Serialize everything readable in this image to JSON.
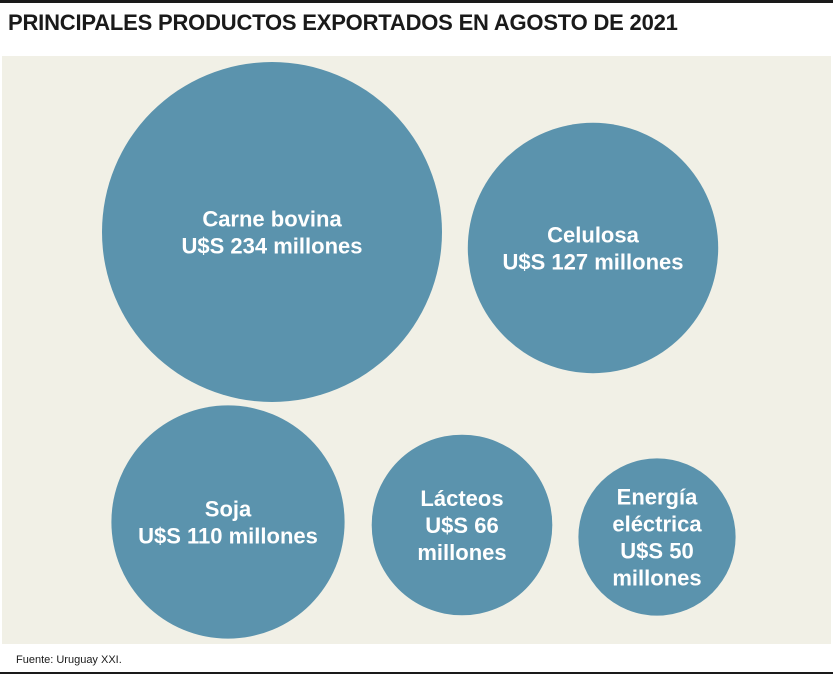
{
  "title": "PRINCIPALES PRODUCTOS EXPORTADOS EN AGOSTO DE 2021",
  "source": "Fuente: Uruguay XXI.",
  "colors": {
    "bubble": "#5b93ad",
    "panel": "#f1f0e6",
    "text": "#1a1a1a"
  },
  "chart_data": {
    "type": "bubble",
    "title": "PRINCIPALES PRODUCTOS EXPORTADOS EN AGOSTO DE 2021",
    "unit": "millones U$S",
    "categories": [
      "Carne bovina",
      "Celulosa",
      "Soja",
      "Lácteos",
      "Energía eléctrica"
    ],
    "values": [
      234,
      127,
      110,
      66,
      50
    ],
    "labels": [
      [
        "Carne bovina",
        "U$S 234 millones"
      ],
      [
        "Celulosa",
        "U$S 127  millones"
      ],
      [
        "Soja",
        "U$S 110  millones"
      ],
      [
        "Lácteos",
        "U$S 66",
        "millones"
      ],
      [
        "Energía",
        "eléctrica",
        "U$S 50",
        "millones"
      ]
    ]
  }
}
